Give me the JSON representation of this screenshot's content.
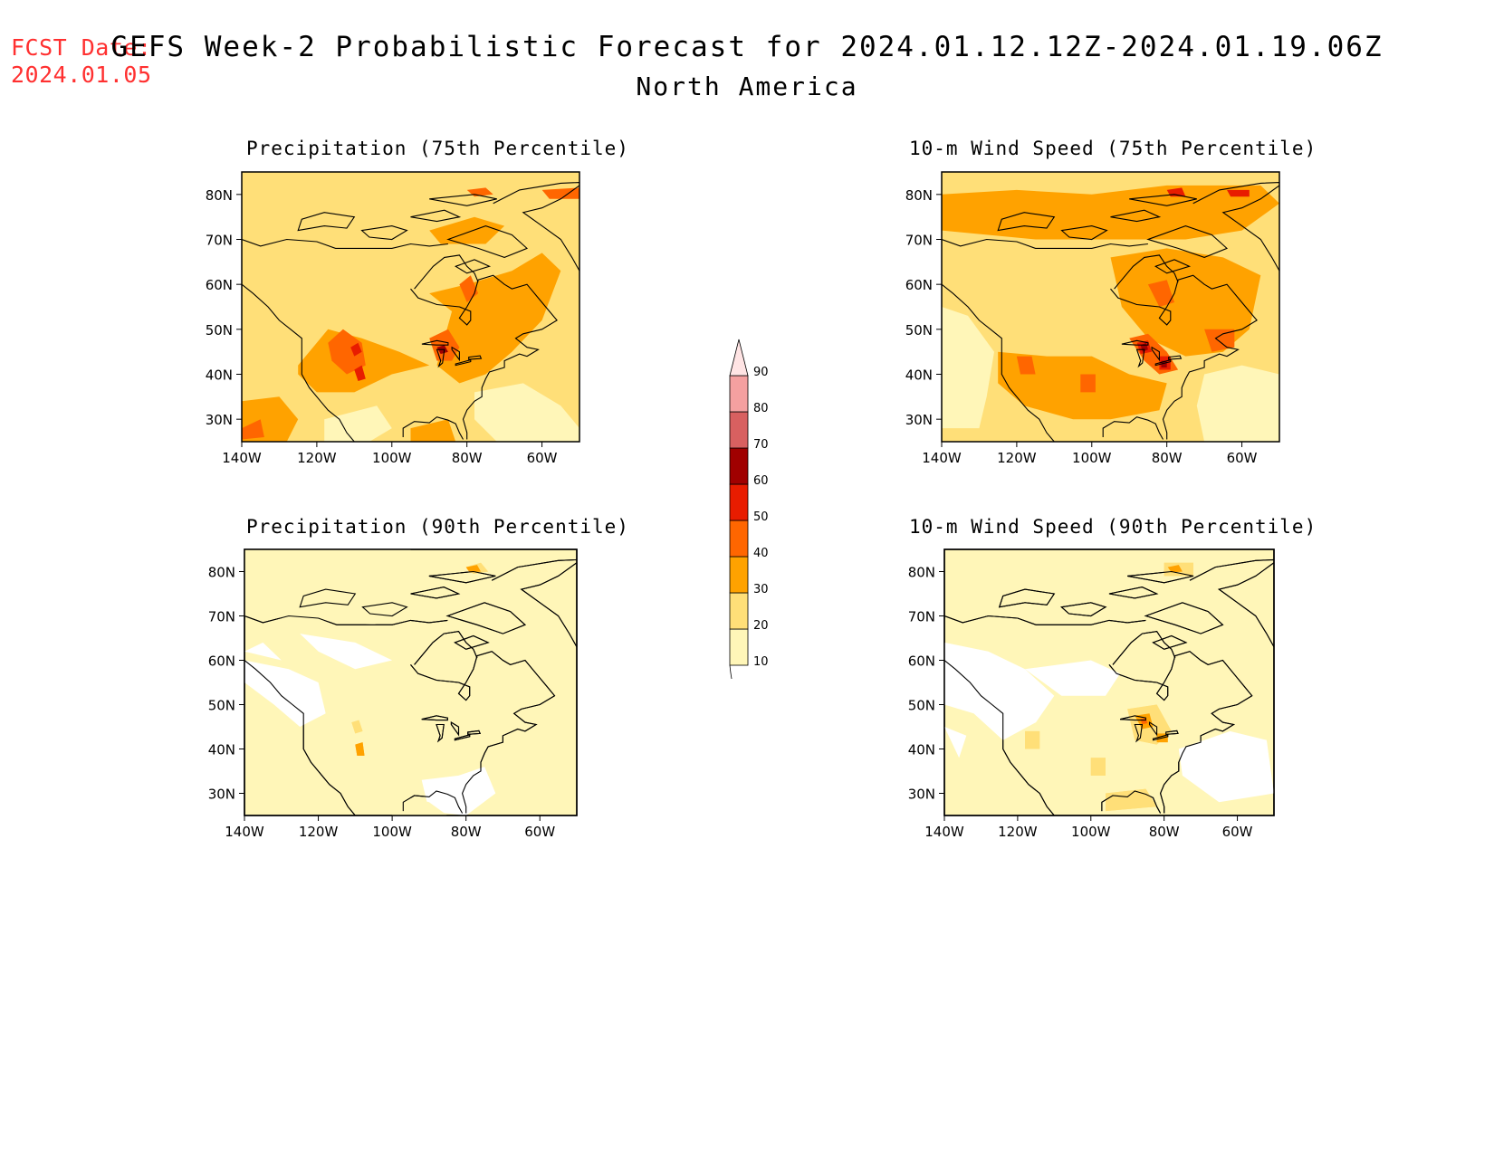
{
  "header": {
    "fcst_label": "FCST Date:",
    "fcst_date": "2024.01.05",
    "title": "GEFS Week-2 Probabilistic Forecast for 2024.01.12.12Z-2024.01.19.06Z",
    "subtitle": "North America"
  },
  "panels": [
    {
      "id": "precip-75",
      "title": "Precipitation (75th Percentile)"
    },
    {
      "id": "wind-75",
      "title": "10-m Wind Speed (75th Percentile)"
    },
    {
      "id": "precip-90",
      "title": "Precipitation (90th Percentile)"
    },
    {
      "id": "wind-90",
      "title": "10-m Wind Speed (90th Percentile)"
    }
  ],
  "axes": {
    "lat_ticks": [
      "80N",
      "70N",
      "60N",
      "50N",
      "40N",
      "30N"
    ],
    "lon_ticks": [
      "140W",
      "120W",
      "100W",
      "80W",
      "60W"
    ]
  },
  "colorbar": {
    "levels": [
      "10",
      "20",
      "30",
      "40",
      "50",
      "60",
      "70",
      "80",
      "90"
    ],
    "colors": [
      "#fff6b8",
      "#ffdf78",
      "#ffa200",
      "#ff6600",
      "#e81c00",
      "#a00000",
      "#d86060",
      "#f4a0a0",
      "#ffe4e4"
    ]
  }
}
